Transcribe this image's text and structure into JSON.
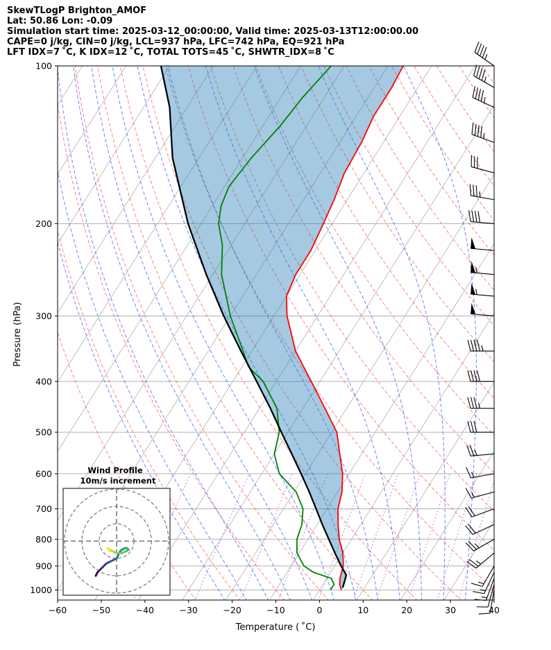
{
  "header": {
    "line1": "SkewTLogP Brighton_AMOF",
    "line2": "Lat: 50.86   Lon: -0.09",
    "line3": "Simulation start time: 2025-03-12_00:00:00, Valid time: 2025-03-13T12:00:00.00",
    "line4": "CAPE=0 j/kg, CIN=0 j/kg, LCL=937 hPa, LFC=742 hPa, EQ=921 hPa",
    "line5": "LFT IDX=7 ˚C, K IDX=12 ˚C, TOTAL TOTS=45 ˚C, SHWTR_IDX=8 ˚C"
  },
  "chart_data": {
    "type": "line",
    "xlabel": "Temperature ( ˚C)",
    "ylabel": "Pressure (hPa)",
    "xlim": [
      -60,
      40
    ],
    "ylim": [
      1050,
      100
    ],
    "y_scale": "log",
    "skew": true,
    "x_ticks": [
      -60,
      -50,
      -40,
      -30,
      -20,
      -10,
      0,
      10,
      20,
      30,
      40
    ],
    "x_tick_labels": [
      "−60",
      "−50",
      "−40",
      "−30",
      "−20",
      "−10",
      "0",
      "10",
      "20",
      "30",
      "40"
    ],
    "y_ticks": [
      1000,
      900,
      800,
      700,
      600,
      500,
      400,
      300,
      200,
      100
    ],
    "y_tick_labels": [
      "1000",
      "900",
      "800",
      "700",
      "600",
      "500",
      "400",
      "300",
      "200",
      "100"
    ],
    "grid": true,
    "series": [
      {
        "color": "#ff0000",
        "points": [
          [
            1000,
            5.0
          ],
          [
            975,
            3.8
          ],
          [
            950,
            3.0
          ],
          [
            925,
            2.5
          ],
          [
            900,
            2.0
          ],
          [
            850,
            0.0
          ],
          [
            800,
            -2.8
          ],
          [
            750,
            -5.2
          ],
          [
            700,
            -7.5
          ],
          [
            650,
            -9.0
          ],
          [
            600,
            -11.5
          ],
          [
            550,
            -15.0
          ],
          [
            500,
            -18.8
          ],
          [
            450,
            -25.0
          ],
          [
            400,
            -32.0
          ],
          [
            350,
            -40.0
          ],
          [
            300,
            -47.0
          ],
          [
            275,
            -50.0
          ],
          [
            250,
            -51.0
          ],
          [
            225,
            -51.0
          ],
          [
            200,
            -52.0
          ],
          [
            180,
            -53.0
          ],
          [
            160,
            -54.5
          ],
          [
            140,
            -55.0
          ],
          [
            125,
            -56.0
          ],
          [
            110,
            -56.0
          ],
          [
            100,
            -56.5
          ]
        ]
      },
      {
        "color": "#008000",
        "points": [
          [
            1000,
            2.5
          ],
          [
            975,
            2.5
          ],
          [
            950,
            1.0
          ],
          [
            925,
            -4.0
          ],
          [
            900,
            -7.0
          ],
          [
            850,
            -10.5
          ],
          [
            800,
            -12.5
          ],
          [
            750,
            -13.5
          ],
          [
            700,
            -15.5
          ],
          [
            650,
            -19.5
          ],
          [
            600,
            -26.0
          ],
          [
            550,
            -30.0
          ],
          [
            500,
            -32.0
          ],
          [
            450,
            -36.0
          ],
          [
            400,
            -43.0
          ],
          [
            375,
            -48.5
          ],
          [
            350,
            -52.0
          ],
          [
            300,
            -60.0
          ],
          [
            250,
            -68.0
          ],
          [
            220,
            -72.0
          ],
          [
            200,
            -76.0
          ],
          [
            185,
            -78.0
          ],
          [
            170,
            -79.0
          ],
          [
            150,
            -78.0
          ],
          [
            130,
            -76.0
          ],
          [
            115,
            -75.0
          ],
          [
            100,
            -73.0
          ]
        ]
      },
      {
        "color": "#000000",
        "points": [
          [
            990,
            5.0
          ],
          [
            937,
            4.0
          ],
          [
            900,
            1.5
          ],
          [
            850,
            -1.8
          ],
          [
            800,
            -5.2
          ],
          [
            750,
            -8.8
          ],
          [
            700,
            -12.5
          ],
          [
            650,
            -16.5
          ],
          [
            600,
            -21.0
          ],
          [
            550,
            -26.0
          ],
          [
            500,
            -31.5
          ],
          [
            450,
            -37.5
          ],
          [
            400,
            -44.5
          ],
          [
            350,
            -52.5
          ],
          [
            300,
            -61.5
          ],
          [
            250,
            -71.5
          ],
          [
            200,
            -83.0
          ],
          [
            150,
            -96.0
          ],
          [
            120,
            -104.0
          ],
          [
            100,
            -112.0
          ]
        ]
      }
    ],
    "cape_fill": {
      "between": [
        "black",
        "red"
      ],
      "color": "#1f77b4",
      "opacity": 0.4
    },
    "wind_barbs": [
      [
        1000,
        10,
        190
      ],
      [
        975,
        12,
        195
      ],
      [
        950,
        15,
        200
      ],
      [
        925,
        15,
        205
      ],
      [
        900,
        18,
        210
      ],
      [
        850,
        25,
        230
      ],
      [
        800,
        25,
        240
      ],
      [
        750,
        22,
        245
      ],
      [
        700,
        20,
        250
      ],
      [
        650,
        15,
        255
      ],
      [
        600,
        15,
        260
      ],
      [
        550,
        25,
        265
      ],
      [
        500,
        30,
        270
      ],
      [
        450,
        35,
        270
      ],
      [
        400,
        40,
        270
      ],
      [
        350,
        45,
        270
      ],
      [
        300,
        50,
        275
      ],
      [
        275,
        55,
        275
      ],
      [
        250,
        55,
        275
      ],
      [
        225,
        50,
        275
      ],
      [
        200,
        40,
        275
      ],
      [
        180,
        35,
        280
      ],
      [
        160,
        30,
        285
      ],
      [
        140,
        45,
        290
      ],
      [
        120,
        45,
        295
      ],
      [
        110,
        45,
        300
      ],
      [
        100,
        45,
        305
      ]
    ],
    "inset": {
      "title_line1": "Wind Profile",
      "title_line2": "10m/s increment",
      "rings_ms": [
        10,
        20,
        30
      ],
      "hodograph_uv": [
        [
          -12,
          -20
        ],
        [
          -11,
          -18
        ],
        [
          -10,
          -17
        ],
        [
          -8,
          -15
        ],
        [
          -6,
          -13
        ],
        [
          -4,
          -12
        ],
        [
          -2,
          -11
        ],
        [
          0,
          -10
        ],
        [
          1,
          -8
        ],
        [
          2,
          -6
        ],
        [
          3,
          -5
        ],
        [
          5,
          -4
        ],
        [
          6,
          -4
        ],
        [
          7,
          -5
        ],
        [
          5,
          -6
        ],
        [
          3,
          -7
        ],
        [
          0,
          -7
        ],
        [
          -2,
          -6
        ],
        [
          -4,
          -5
        ],
        [
          -5,
          -4
        ],
        [
          -4,
          -6
        ]
      ]
    }
  }
}
